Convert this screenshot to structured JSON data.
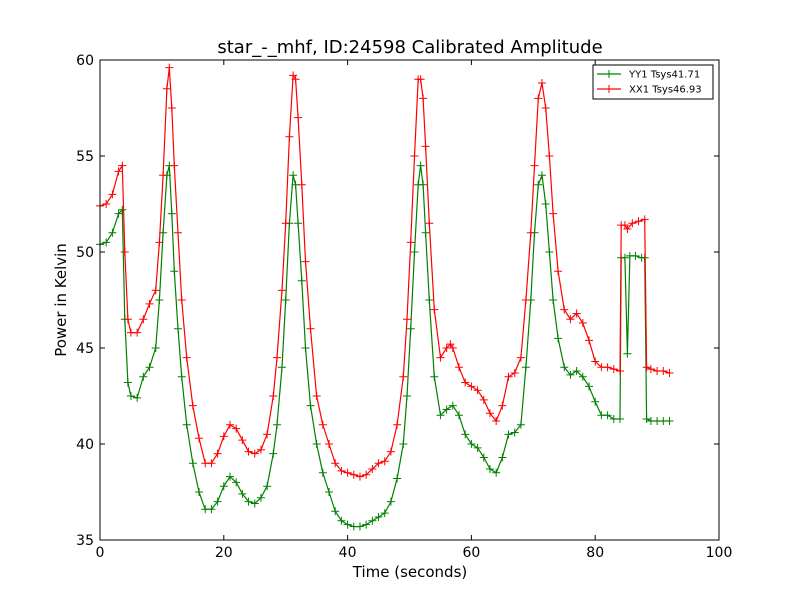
{
  "chart_data": {
    "type": "line",
    "title": "star_-_mhf, ID:24598 Calibrated Amplitude",
    "xlabel": "Time (seconds)",
    "ylabel": "Power in Kelvin",
    "xlim": [
      0,
      100
    ],
    "ylim": [
      35,
      60
    ],
    "xticks": [
      0,
      20,
      40,
      60,
      80,
      100
    ],
    "yticks": [
      35,
      40,
      45,
      50,
      55,
      60
    ],
    "grid": false,
    "legend_position": "top-right",
    "marker": "+",
    "series": [
      {
        "name": "YY1 Tsys41.71",
        "color": "#008000",
        "points": [
          [
            0.0,
            50.4
          ],
          [
            1.0,
            50.5
          ],
          [
            2.0,
            51.0
          ],
          [
            3.0,
            52.0
          ],
          [
            3.6,
            52.2
          ],
          [
            4.0,
            46.5
          ],
          [
            4.5,
            43.2
          ],
          [
            5.0,
            42.5
          ],
          [
            6.0,
            42.4
          ],
          [
            7.0,
            43.5
          ],
          [
            8.0,
            44.0
          ],
          [
            9.0,
            45.0
          ],
          [
            9.6,
            47.5
          ],
          [
            10.2,
            51.0
          ],
          [
            10.8,
            54.0
          ],
          [
            11.2,
            54.5
          ],
          [
            11.6,
            52.0
          ],
          [
            12.0,
            49.0
          ],
          [
            12.6,
            46.0
          ],
          [
            13.2,
            43.5
          ],
          [
            14.0,
            41.0
          ],
          [
            15.0,
            39.0
          ],
          [
            16.0,
            37.5
          ],
          [
            17.0,
            36.6
          ],
          [
            18.0,
            36.6
          ],
          [
            19.0,
            37.0
          ],
          [
            20.0,
            37.8
          ],
          [
            21.0,
            38.3
          ],
          [
            22.0,
            38.0
          ],
          [
            23.0,
            37.4
          ],
          [
            24.0,
            37.0
          ],
          [
            25.0,
            36.9
          ],
          [
            26.0,
            37.2
          ],
          [
            27.0,
            37.8
          ],
          [
            28.0,
            39.5
          ],
          [
            28.6,
            41.0
          ],
          [
            29.4,
            44.0
          ],
          [
            30.0,
            47.5
          ],
          [
            30.6,
            51.5
          ],
          [
            31.2,
            54.0
          ],
          [
            31.6,
            53.5
          ],
          [
            32.0,
            51.5
          ],
          [
            32.6,
            48.5
          ],
          [
            33.2,
            45.0
          ],
          [
            34.0,
            42.0
          ],
          [
            35.0,
            40.0
          ],
          [
            36.0,
            38.5
          ],
          [
            37.0,
            37.5
          ],
          [
            38.0,
            36.5
          ],
          [
            39.0,
            36.0
          ],
          [
            40.0,
            35.8
          ],
          [
            41.0,
            35.7
          ],
          [
            42.0,
            35.7
          ],
          [
            43.0,
            35.8
          ],
          [
            44.0,
            36.0
          ],
          [
            45.0,
            36.2
          ],
          [
            46.0,
            36.4
          ],
          [
            47.0,
            37.0
          ],
          [
            48.0,
            38.2
          ],
          [
            49.0,
            40.0
          ],
          [
            49.6,
            42.5
          ],
          [
            50.2,
            46.0
          ],
          [
            50.8,
            50.0
          ],
          [
            51.4,
            53.5
          ],
          [
            51.8,
            54.5
          ],
          [
            52.2,
            53.5
          ],
          [
            52.6,
            51.0
          ],
          [
            53.2,
            47.5
          ],
          [
            54.0,
            43.5
          ],
          [
            55.0,
            41.5
          ],
          [
            56.0,
            41.8
          ],
          [
            57.0,
            42.0
          ],
          [
            58.0,
            41.5
          ],
          [
            59.0,
            40.5
          ],
          [
            60.0,
            40.0
          ],
          [
            61.0,
            39.8
          ],
          [
            62.0,
            39.3
          ],
          [
            63.0,
            38.7
          ],
          [
            64.0,
            38.5
          ],
          [
            65.0,
            39.3
          ],
          [
            66.0,
            40.5
          ],
          [
            67.0,
            40.6
          ],
          [
            68.0,
            41.0
          ],
          [
            68.8,
            44.0
          ],
          [
            69.6,
            47.5
          ],
          [
            70.2,
            51.0
          ],
          [
            70.8,
            53.5
          ],
          [
            71.4,
            54.0
          ],
          [
            72.0,
            52.5
          ],
          [
            72.6,
            50.0
          ],
          [
            73.2,
            47.5
          ],
          [
            74.0,
            45.5
          ],
          [
            75.0,
            44.0
          ],
          [
            76.0,
            43.6
          ],
          [
            77.0,
            43.8
          ],
          [
            78.0,
            43.5
          ],
          [
            79.0,
            43.0
          ],
          [
            80.0,
            42.2
          ],
          [
            81.0,
            41.5
          ],
          [
            82.0,
            41.5
          ],
          [
            83.0,
            41.3
          ],
          [
            84.0,
            41.3
          ],
          [
            84.2,
            49.7
          ],
          [
            84.8,
            49.7
          ],
          [
            85.2,
            44.7
          ],
          [
            85.6,
            49.8
          ],
          [
            86.5,
            49.8
          ],
          [
            87.5,
            49.7
          ],
          [
            88.0,
            49.7
          ],
          [
            88.3,
            41.3
          ],
          [
            89.0,
            41.2
          ],
          [
            90.0,
            41.2
          ],
          [
            91.0,
            41.2
          ],
          [
            92.0,
            41.2
          ]
        ]
      },
      {
        "name": "XX1 Tsys46.93",
        "color": "#ff0000",
        "points": [
          [
            0.0,
            52.4
          ],
          [
            1.0,
            52.5
          ],
          [
            2.0,
            53.0
          ],
          [
            3.0,
            54.2
          ],
          [
            3.6,
            54.5
          ],
          [
            4.0,
            50.0
          ],
          [
            4.5,
            46.5
          ],
          [
            5.0,
            45.8
          ],
          [
            6.0,
            45.8
          ],
          [
            7.0,
            46.5
          ],
          [
            8.0,
            47.3
          ],
          [
            9.0,
            48.0
          ],
          [
            9.6,
            50.5
          ],
          [
            10.2,
            54.0
          ],
          [
            10.8,
            58.5
          ],
          [
            11.2,
            59.6
          ],
          [
            11.6,
            57.5
          ],
          [
            12.0,
            54.5
          ],
          [
            12.6,
            51.0
          ],
          [
            13.2,
            47.5
          ],
          [
            14.0,
            44.5
          ],
          [
            15.0,
            42.0
          ],
          [
            16.0,
            40.3
          ],
          [
            17.0,
            39.0
          ],
          [
            18.0,
            39.0
          ],
          [
            19.0,
            39.5
          ],
          [
            20.0,
            40.4
          ],
          [
            21.0,
            41.0
          ],
          [
            22.0,
            40.8
          ],
          [
            23.0,
            40.2
          ],
          [
            24.0,
            39.6
          ],
          [
            25.0,
            39.5
          ],
          [
            26.0,
            39.7
          ],
          [
            27.0,
            40.5
          ],
          [
            28.0,
            42.5
          ],
          [
            28.6,
            44.5
          ],
          [
            29.4,
            48.0
          ],
          [
            30.0,
            51.5
          ],
          [
            30.6,
            56.0
          ],
          [
            31.2,
            59.2
          ],
          [
            31.6,
            59.0
          ],
          [
            32.0,
            57.0
          ],
          [
            32.6,
            53.5
          ],
          [
            33.2,
            49.5
          ],
          [
            34.0,
            46.0
          ],
          [
            35.0,
            42.5
          ],
          [
            36.0,
            41.0
          ],
          [
            37.0,
            40.0
          ],
          [
            38.0,
            39.0
          ],
          [
            39.0,
            38.6
          ],
          [
            40.0,
            38.5
          ],
          [
            41.0,
            38.4
          ],
          [
            42.0,
            38.3
          ],
          [
            43.0,
            38.4
          ],
          [
            44.0,
            38.7
          ],
          [
            45.0,
            39.0
          ],
          [
            46.0,
            39.1
          ],
          [
            47.0,
            39.6
          ],
          [
            48.0,
            41.0
          ],
          [
            49.0,
            43.5
          ],
          [
            49.6,
            46.5
          ],
          [
            50.2,
            50.5
          ],
          [
            50.8,
            55.0
          ],
          [
            51.4,
            59.0
          ],
          [
            51.8,
            59.0
          ],
          [
            52.2,
            58.0
          ],
          [
            52.6,
            55.5
          ],
          [
            53.2,
            51.5
          ],
          [
            54.0,
            47.0
          ],
          [
            55.0,
            44.5
          ],
          [
            56.0,
            45.0
          ],
          [
            56.6,
            45.2
          ],
          [
            57.0,
            45.0
          ],
          [
            58.0,
            44.0
          ],
          [
            59.0,
            43.2
          ],
          [
            60.0,
            43.0
          ],
          [
            61.0,
            42.8
          ],
          [
            62.0,
            42.3
          ],
          [
            63.0,
            41.6
          ],
          [
            64.0,
            41.2
          ],
          [
            65.0,
            42.0
          ],
          [
            66.0,
            43.5
          ],
          [
            67.0,
            43.7
          ],
          [
            68.0,
            44.5
          ],
          [
            68.8,
            47.5
          ],
          [
            69.6,
            51.0
          ],
          [
            70.2,
            54.5
          ],
          [
            70.8,
            58.0
          ],
          [
            71.4,
            58.8
          ],
          [
            72.0,
            57.5
          ],
          [
            72.6,
            55.0
          ],
          [
            73.2,
            52.0
          ],
          [
            74.0,
            49.0
          ],
          [
            75.0,
            47.0
          ],
          [
            76.0,
            46.5
          ],
          [
            77.0,
            46.8
          ],
          [
            78.0,
            46.3
          ],
          [
            79.0,
            45.4
          ],
          [
            80.0,
            44.3
          ],
          [
            81.0,
            44.0
          ],
          [
            82.0,
            44.0
          ],
          [
            83.0,
            43.9
          ],
          [
            84.0,
            43.8
          ],
          [
            84.2,
            51.4
          ],
          [
            84.8,
            51.4
          ],
          [
            85.2,
            51.2
          ],
          [
            86.0,
            51.5
          ],
          [
            87.0,
            51.6
          ],
          [
            88.0,
            51.7
          ],
          [
            88.3,
            44.0
          ],
          [
            89.0,
            43.9
          ],
          [
            90.0,
            43.8
          ],
          [
            91.0,
            43.8
          ],
          [
            92.0,
            43.7
          ]
        ]
      }
    ]
  }
}
